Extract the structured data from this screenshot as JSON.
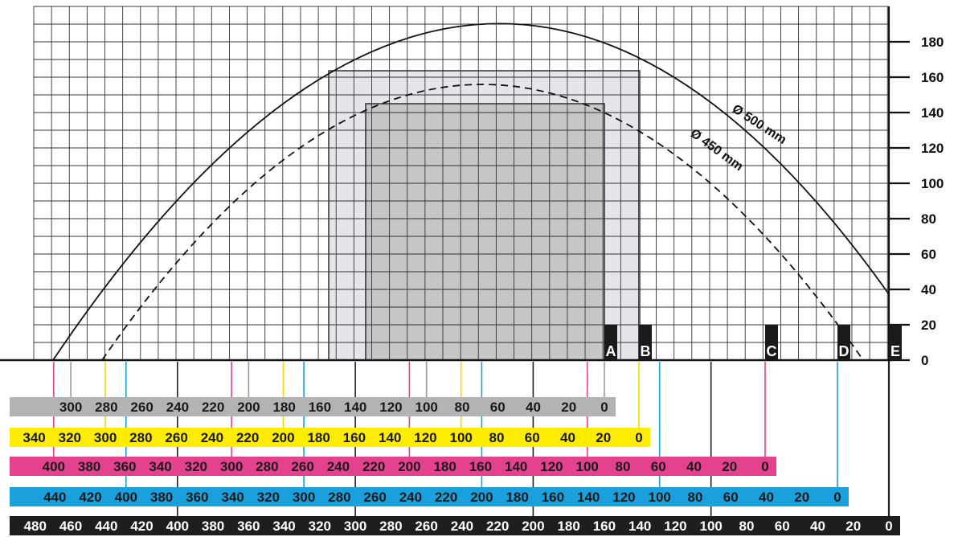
{
  "colors": {
    "grid": "#333333",
    "box_fill": "#c6c6c8",
    "light_fill": "#e4e6ec",
    "gray_band": "#b3b3b3",
    "yellow_band": "#ffed00",
    "magenta_band": "#e4418f",
    "blue_band": "#1aa0dc",
    "black_band": "#1e1e1e",
    "marker_bg": "#1a1a1a"
  },
  "y_axis": {
    "ticks": [
      "0",
      "20",
      "40",
      "60",
      "80",
      "100",
      "120",
      "140",
      "160",
      "180"
    ]
  },
  "arc_labels": {
    "outer": "Ø 500 mm",
    "inner": "Ø 450 mm"
  },
  "markers": [
    {
      "letter": "A",
      "scale": "gray"
    },
    {
      "letter": "B",
      "scale": "yellow"
    },
    {
      "letter": "C",
      "scale": "magenta"
    },
    {
      "letter": "D",
      "scale": "blue"
    },
    {
      "letter": "E",
      "scale": "black"
    }
  ],
  "scales": {
    "gray": [
      "300",
      "280",
      "260",
      "240",
      "220",
      "200",
      "180",
      "160",
      "140",
      "120",
      "100",
      "80",
      "60",
      "40",
      "20",
      "0"
    ],
    "yellow": [
      "340",
      "320",
      "300",
      "280",
      "260",
      "240",
      "220",
      "200",
      "180",
      "160",
      "140",
      "120",
      "100",
      "80",
      "60",
      "40",
      "20",
      "0"
    ],
    "magenta": [
      "400",
      "380",
      "360",
      "340",
      "320",
      "300",
      "280",
      "260",
      "240",
      "220",
      "200",
      "180",
      "160",
      "140",
      "120",
      "100",
      "80",
      "60",
      "40",
      "20",
      "0"
    ],
    "blue": [
      "440",
      "420",
      "400",
      "380",
      "360",
      "340",
      "320",
      "300",
      "280",
      "260",
      "240",
      "220",
      "200",
      "180",
      "160",
      "140",
      "120",
      "100",
      "80",
      "60",
      "40",
      "20",
      "0"
    ],
    "black": [
      "480",
      "460",
      "440",
      "420",
      "400",
      "380",
      "360",
      "340",
      "320",
      "300",
      "280",
      "260",
      "240",
      "220",
      "200",
      "180",
      "160",
      "140",
      "120",
      "100",
      "80",
      "60",
      "40",
      "20",
      "0"
    ]
  }
}
